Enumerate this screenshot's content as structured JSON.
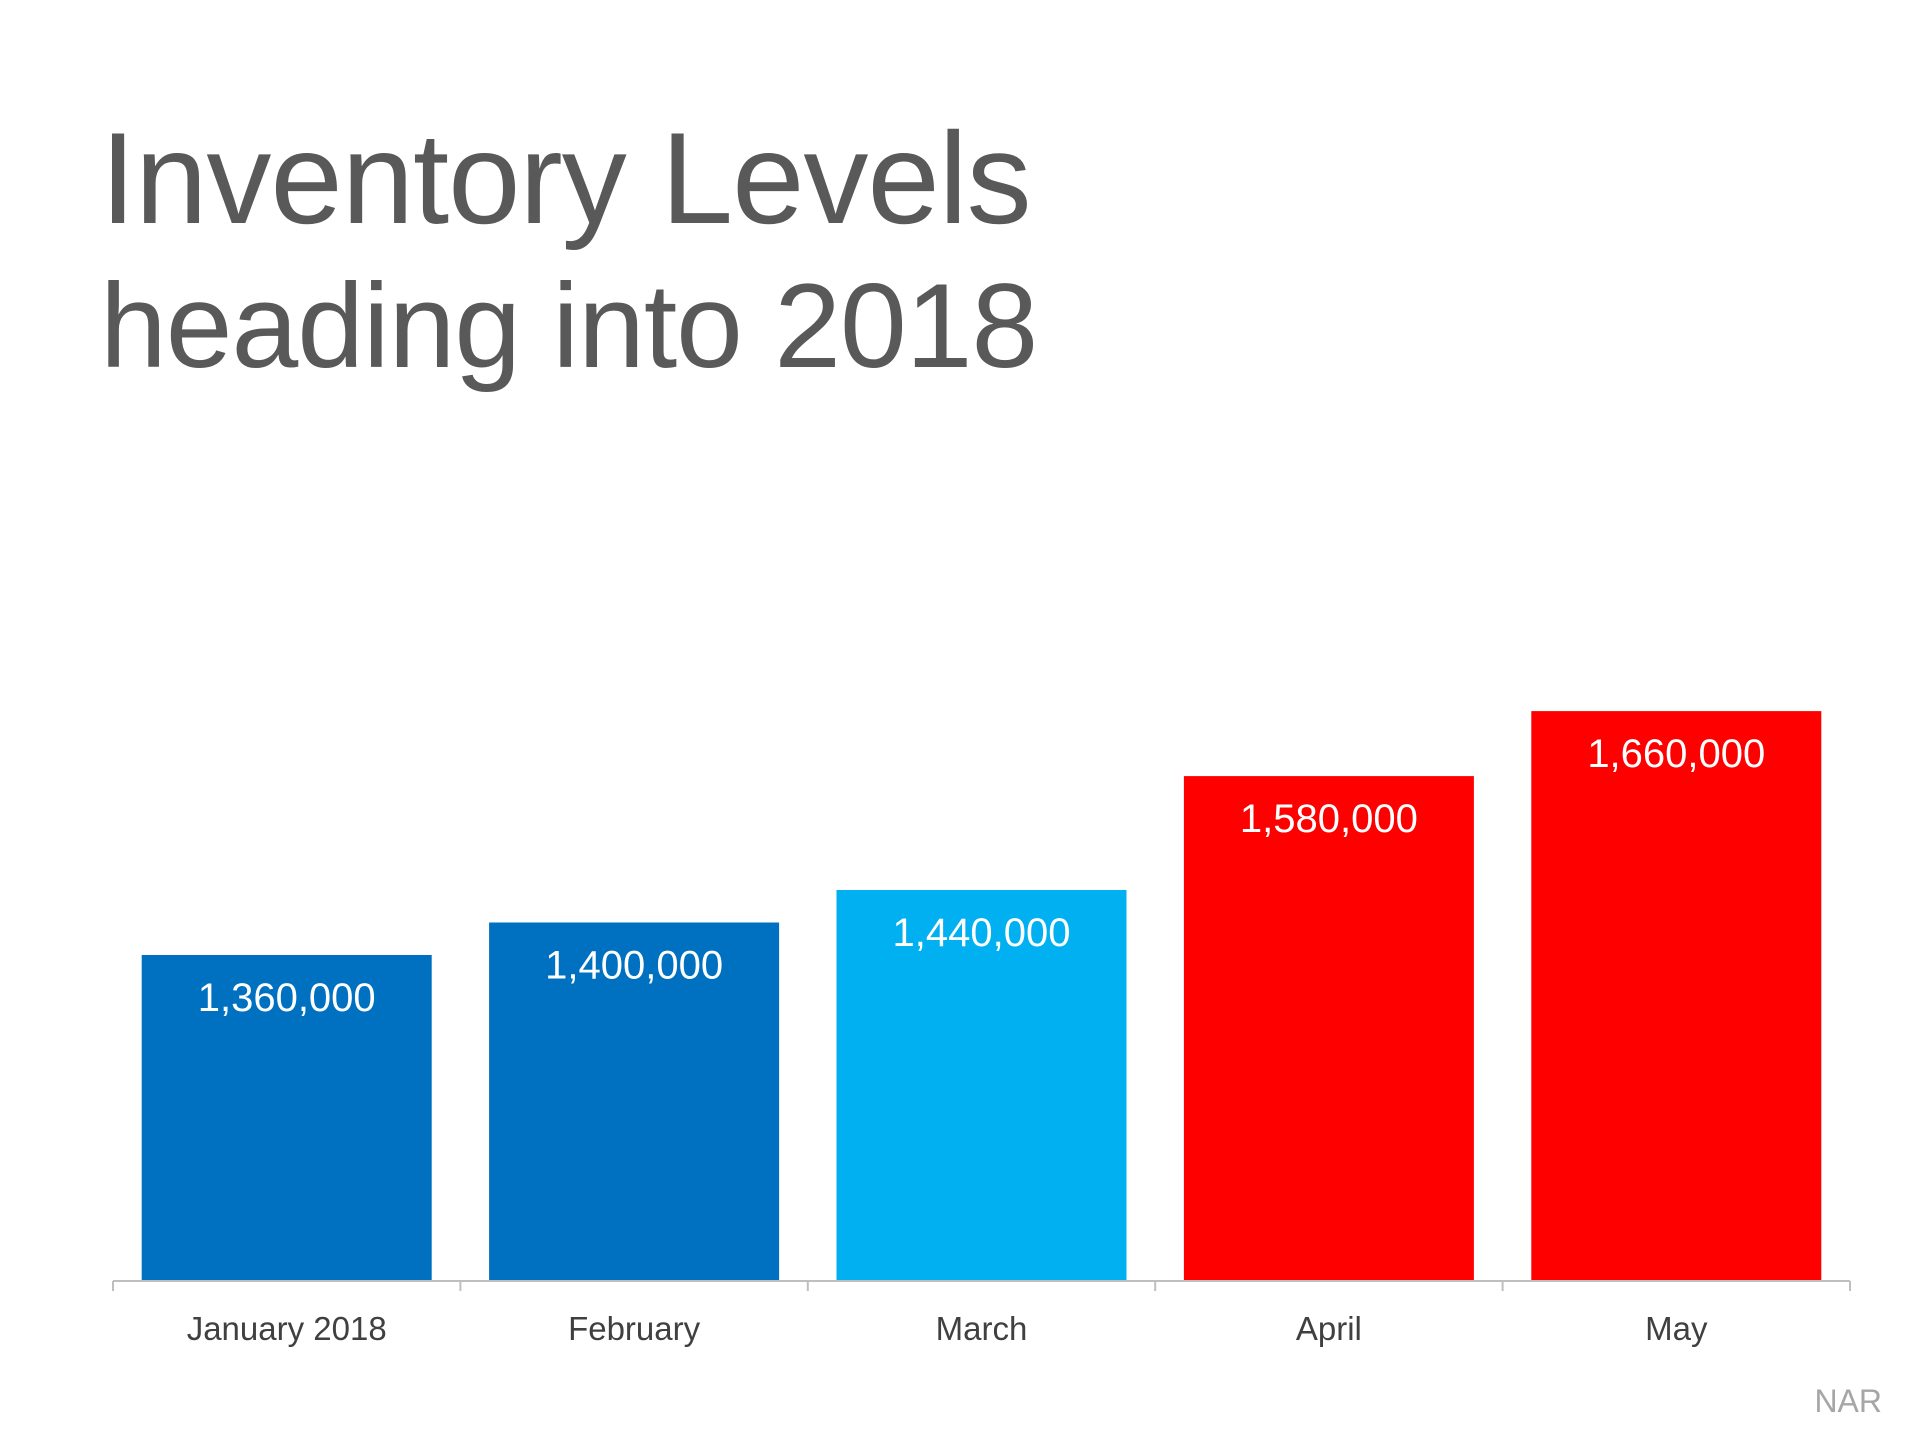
{
  "chart_data": {
    "type": "bar",
    "title": "Inventory Levels",
    "subtitle": "heading into 2018",
    "categories": [
      "January 2018",
      "February",
      "March",
      "April",
      "May"
    ],
    "values": [
      1360000,
      1400000,
      1440000,
      1580000,
      1660000
    ],
    "data_labels": [
      "1,360,000",
      "1,400,000",
      "1,440,000",
      "1,580,000",
      "1,660,000"
    ],
    "bar_colors": [
      "#0070c0",
      "#0070c0",
      "#00b0f0",
      "#ff0000",
      "#ff0000"
    ],
    "xlabel": "",
    "ylabel": "",
    "grid": false,
    "legend": "none"
  },
  "source": "NAR"
}
